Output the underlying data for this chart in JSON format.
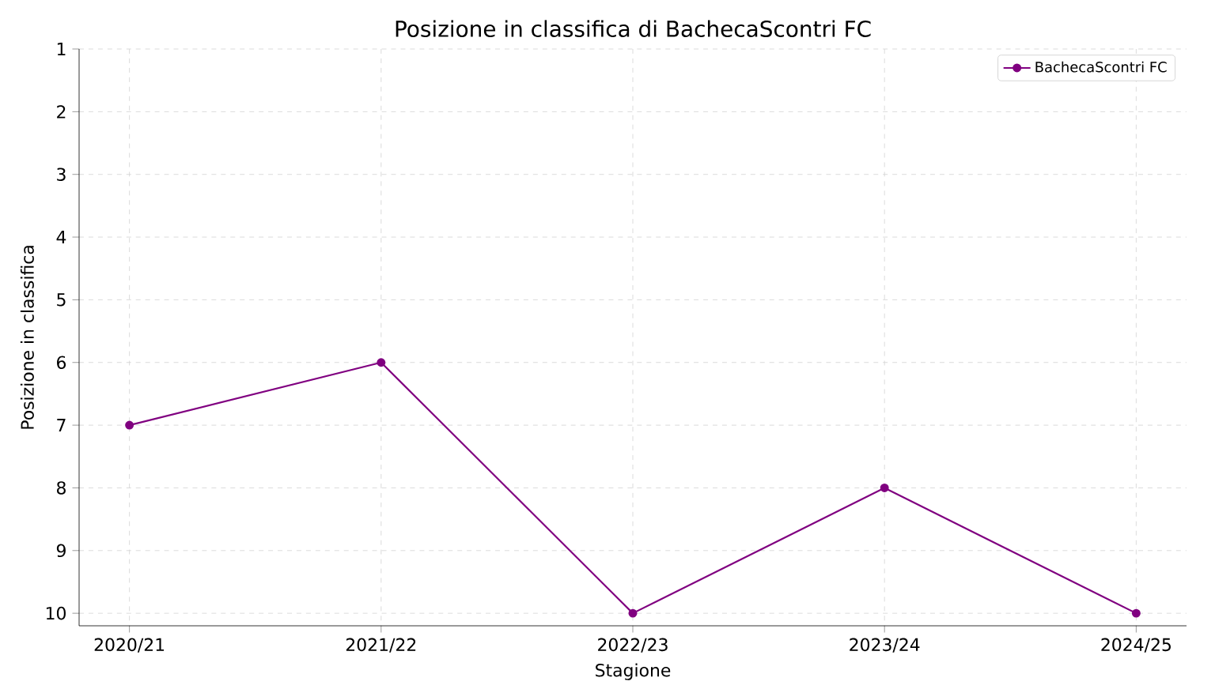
{
  "chart_data": {
    "type": "line",
    "title": "Posizione in classifica di BachecaScontri FC",
    "xlabel": "Stagione",
    "ylabel": "Posizione in classifica",
    "categories": [
      "2020/21",
      "2021/22",
      "2022/23",
      "2023/24",
      "2024/25"
    ],
    "series": [
      {
        "name": "BachecaScontri FC",
        "color": "#800080",
        "values": [
          7,
          6,
          10,
          8,
          10
        ]
      }
    ],
    "ylim": [
      10.2,
      1
    ],
    "yticks": [
      1,
      2,
      3,
      4,
      5,
      6,
      7,
      8,
      9,
      10
    ],
    "grid": true,
    "legend": "top right",
    "marker": "circle",
    "line_style": "solid"
  }
}
